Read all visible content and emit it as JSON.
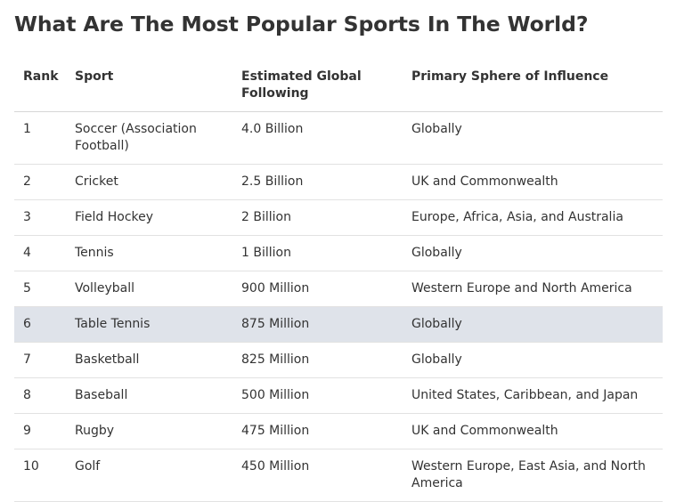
{
  "title": "What Are The Most Popular Sports In The World?",
  "table": {
    "headers": {
      "rank": "Rank",
      "sport": "Sport",
      "following": "Estimated Global Following",
      "sphere": "Primary Sphere of Influence"
    },
    "rows": [
      {
        "rank": "1",
        "sport": "Soccer (Association Football)",
        "following": "4.0 Billion",
        "sphere": "Globally"
      },
      {
        "rank": "2",
        "sport": "Cricket",
        "following": "2.5 Billion",
        "sphere": "UK and Commonwealth"
      },
      {
        "rank": "3",
        "sport": "Field Hockey",
        "following": "2 Billion",
        "sphere": "Europe, Africa, Asia, and Australia"
      },
      {
        "rank": "4",
        "sport": "Tennis",
        "following": "1 Billion",
        "sphere": "Globally"
      },
      {
        "rank": "5",
        "sport": "Volleyball",
        "following": "900 Million",
        "sphere": "Western Europe and North America"
      },
      {
        "rank": "6",
        "sport": "Table Tennis",
        "following": "875 Million",
        "sphere": "Globally"
      },
      {
        "rank": "7",
        "sport": "Basketball",
        "following": "825 Million",
        "sphere": "Globally"
      },
      {
        "rank": "8",
        "sport": "Baseball",
        "following": "500 Million",
        "sphere": "United States, Caribbean, and Japan"
      },
      {
        "rank": "9",
        "sport": "Rugby",
        "following": "475 Million",
        "sphere": "UK and Commonwealth"
      },
      {
        "rank": "10",
        "sport": "Golf",
        "following": "450 Million",
        "sphere": "Western Europe, East Asia, and North America"
      }
    ],
    "highlighted_row_index": 5,
    "highlight_color": "#dfe3ea"
  }
}
